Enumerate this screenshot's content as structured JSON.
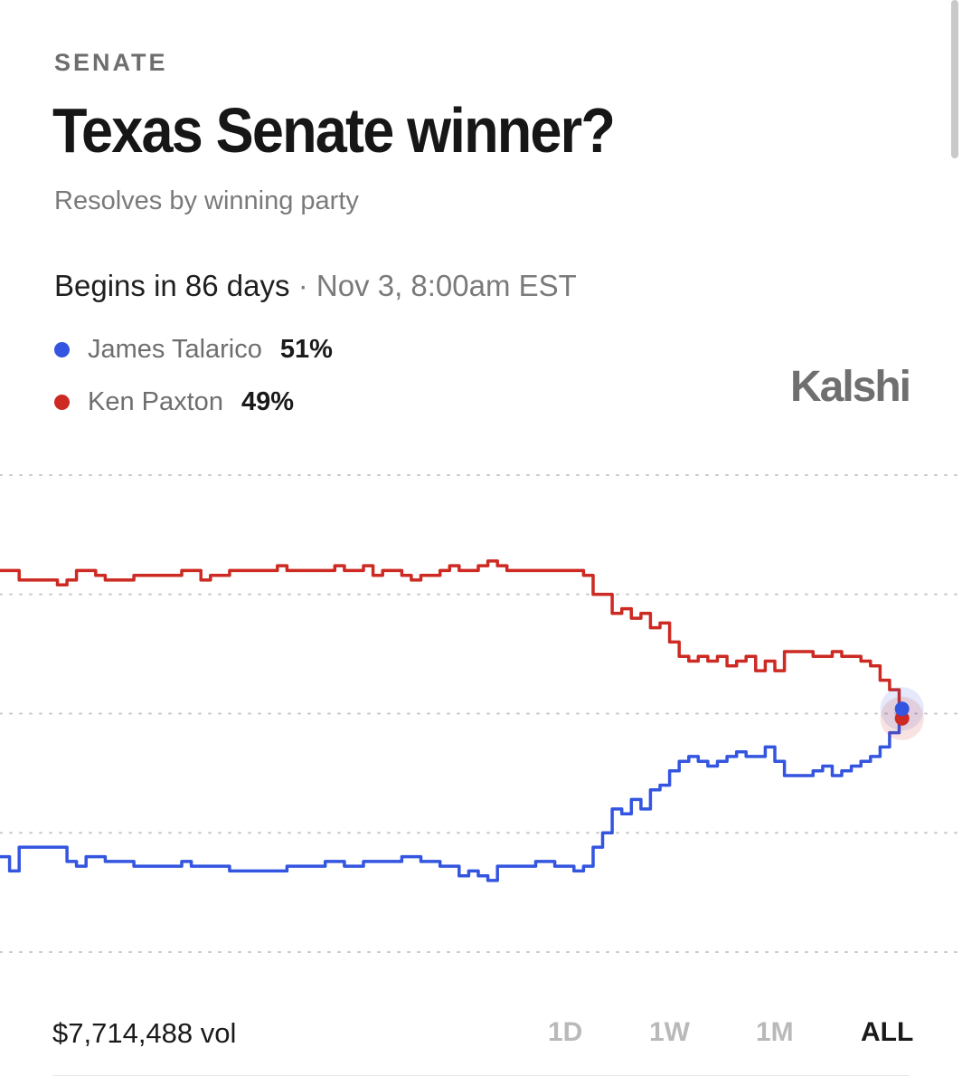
{
  "header": {
    "category": "SENATE",
    "title": "Texas Senate winner?",
    "subtitle": "Resolves by winning party"
  },
  "schedule": {
    "lead": "Begins in 86 days",
    "separator": "·",
    "date": "Nov 3, 8:00am EST"
  },
  "brand": "Kalshi",
  "legend": [
    {
      "name": "James Talarico",
      "pct": "51%",
      "color": "#3355e0"
    },
    {
      "name": "Ken Paxton",
      "pct": "49%",
      "color": "#cc2a22"
    }
  ],
  "footer": {
    "volume": "$7,714,488 vol",
    "ranges": [
      "1D",
      "1W",
      "1M",
      "ALL"
    ],
    "active_range": "ALL"
  },
  "chart_data": {
    "type": "line",
    "x_index_range": [
      0,
      100
    ],
    "ylim": [
      0,
      100
    ],
    "grid": true,
    "legend_placement": "top-left",
    "series": [
      {
        "name": "Ken Paxton",
        "color": "#cc2a22",
        "points": [
          [
            0,
            80
          ],
          [
            1,
            80
          ],
          [
            2,
            78
          ],
          [
            5,
            78
          ],
          [
            6,
            77
          ],
          [
            7,
            78
          ],
          [
            8,
            80
          ],
          [
            9,
            80
          ],
          [
            10,
            79
          ],
          [
            11,
            78
          ],
          [
            12,
            78
          ],
          [
            14,
            79
          ],
          [
            16,
            79
          ],
          [
            18,
            79
          ],
          [
            19,
            80
          ],
          [
            20,
            80
          ],
          [
            21,
            78
          ],
          [
            22,
            79
          ],
          [
            24,
            80
          ],
          [
            26,
            80
          ],
          [
            28,
            80
          ],
          [
            29,
            81
          ],
          [
            30,
            80
          ],
          [
            32,
            80
          ],
          [
            34,
            80
          ],
          [
            35,
            81
          ],
          [
            36,
            80
          ],
          [
            38,
            81
          ],
          [
            39,
            79
          ],
          [
            40,
            80
          ],
          [
            42,
            79
          ],
          [
            43,
            78
          ],
          [
            44,
            79
          ],
          [
            46,
            80
          ],
          [
            47,
            81
          ],
          [
            48,
            80
          ],
          [
            50,
            81
          ],
          [
            51,
            82
          ],
          [
            52,
            81
          ],
          [
            53,
            80
          ],
          [
            54,
            80
          ],
          [
            56,
            80
          ],
          [
            57,
            80
          ],
          [
            58,
            80
          ],
          [
            59,
            80
          ],
          [
            60,
            80
          ],
          [
            61,
            79
          ],
          [
            62,
            75
          ],
          [
            63,
            75
          ],
          [
            64,
            71
          ],
          [
            65,
            72
          ],
          [
            66,
            70
          ],
          [
            67,
            71
          ],
          [
            68,
            68
          ],
          [
            69,
            69
          ],
          [
            70,
            65
          ],
          [
            71,
            62
          ],
          [
            72,
            61
          ],
          [
            73,
            62
          ],
          [
            74,
            61
          ],
          [
            75,
            62
          ],
          [
            76,
            60
          ],
          [
            77,
            61
          ],
          [
            78,
            62
          ],
          [
            79,
            59
          ],
          [
            80,
            61
          ],
          [
            81,
            59
          ],
          [
            82,
            63
          ],
          [
            83,
            63
          ],
          [
            84,
            63
          ],
          [
            85,
            62
          ],
          [
            86,
            62
          ],
          [
            87,
            63
          ],
          [
            88,
            62
          ],
          [
            89,
            62
          ],
          [
            90,
            61
          ],
          [
            91,
            60
          ],
          [
            92,
            57
          ],
          [
            93,
            55
          ],
          [
            94,
            52
          ],
          [
            94.3,
            49
          ]
        ]
      },
      {
        "name": "James Talarico",
        "color": "#3355e0",
        "points": [
          [
            0,
            20
          ],
          [
            1,
            17
          ],
          [
            2,
            22
          ],
          [
            4,
            22
          ],
          [
            6,
            22
          ],
          [
            7,
            19
          ],
          [
            8,
            18
          ],
          [
            9,
            20
          ],
          [
            10,
            20
          ],
          [
            11,
            19
          ],
          [
            12,
            19
          ],
          [
            14,
            18
          ],
          [
            16,
            18
          ],
          [
            18,
            18
          ],
          [
            19,
            19
          ],
          [
            20,
            18
          ],
          [
            22,
            18
          ],
          [
            24,
            17
          ],
          [
            26,
            17
          ],
          [
            28,
            17
          ],
          [
            30,
            18
          ],
          [
            32,
            18
          ],
          [
            34,
            19
          ],
          [
            36,
            18
          ],
          [
            38,
            19
          ],
          [
            40,
            19
          ],
          [
            42,
            20
          ],
          [
            44,
            19
          ],
          [
            46,
            18
          ],
          [
            47,
            18
          ],
          [
            48,
            16
          ],
          [
            49,
            17
          ],
          [
            50,
            16
          ],
          [
            51,
            15
          ],
          [
            52,
            18
          ],
          [
            54,
            18
          ],
          [
            56,
            19
          ],
          [
            58,
            18
          ],
          [
            60,
            17
          ],
          [
            61,
            18
          ],
          [
            62,
            22
          ],
          [
            63,
            25
          ],
          [
            64,
            30
          ],
          [
            65,
            29
          ],
          [
            66,
            32
          ],
          [
            67,
            30
          ],
          [
            68,
            34
          ],
          [
            69,
            35
          ],
          [
            70,
            38
          ],
          [
            71,
            40
          ],
          [
            72,
            41
          ],
          [
            73,
            40
          ],
          [
            74,
            39
          ],
          [
            75,
            40
          ],
          [
            76,
            41
          ],
          [
            77,
            42
          ],
          [
            78,
            41
          ],
          [
            79,
            41
          ],
          [
            80,
            43
          ],
          [
            81,
            40
          ],
          [
            82,
            37
          ],
          [
            83,
            37
          ],
          [
            84,
            37
          ],
          [
            85,
            38
          ],
          [
            86,
            39
          ],
          [
            87,
            37
          ],
          [
            88,
            38
          ],
          [
            89,
            39
          ],
          [
            90,
            40
          ],
          [
            91,
            41
          ],
          [
            92,
            43
          ],
          [
            93,
            46
          ],
          [
            94,
            48
          ],
          [
            94.3,
            51
          ]
        ]
      }
    ]
  }
}
